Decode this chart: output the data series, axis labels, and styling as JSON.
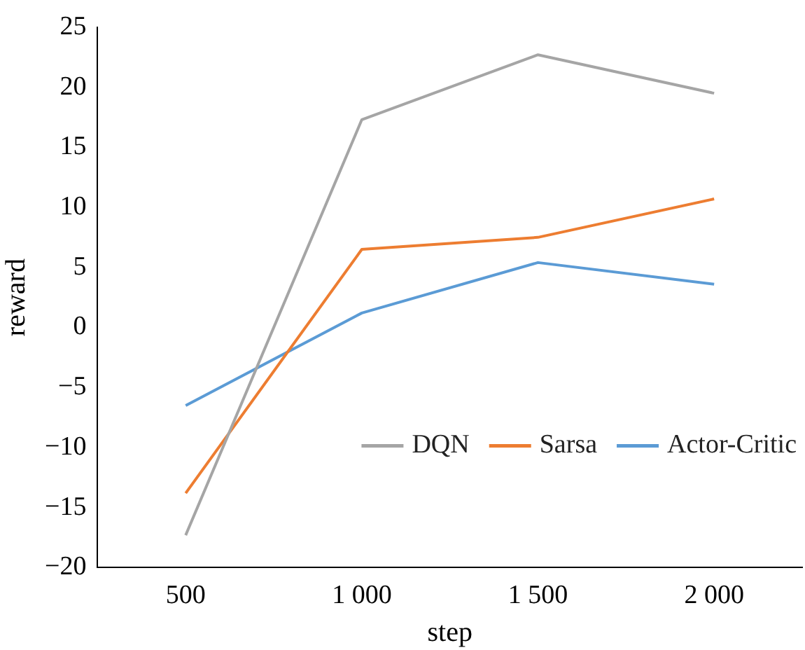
{
  "chart_data": {
    "type": "line",
    "xlabel": "step",
    "ylabel": "reward",
    "categories": [
      "500",
      "1 000",
      "1 500",
      "2 000"
    ],
    "series": [
      {
        "name": "DQN",
        "color": "#a5a5a5",
        "values": [
          -17.3,
          17.3,
          22.7,
          19.5
        ]
      },
      {
        "name": "Sarsa",
        "color": "#ed7d31",
        "values": [
          -13.8,
          6.5,
          7.5,
          10.7
        ]
      },
      {
        "name": "Actor-Critic",
        "color": "#5b9bd5",
        "values": [
          -6.5,
          1.2,
          5.4,
          3.6
        ]
      }
    ],
    "ylim": [
      -20,
      25
    ],
    "yticks": [
      -20,
      -15,
      -10,
      -5,
      0,
      5,
      10,
      15,
      20,
      25
    ],
    "grid": false,
    "legend": "bottom right",
    "marker": "none",
    "line_style": "solid"
  }
}
